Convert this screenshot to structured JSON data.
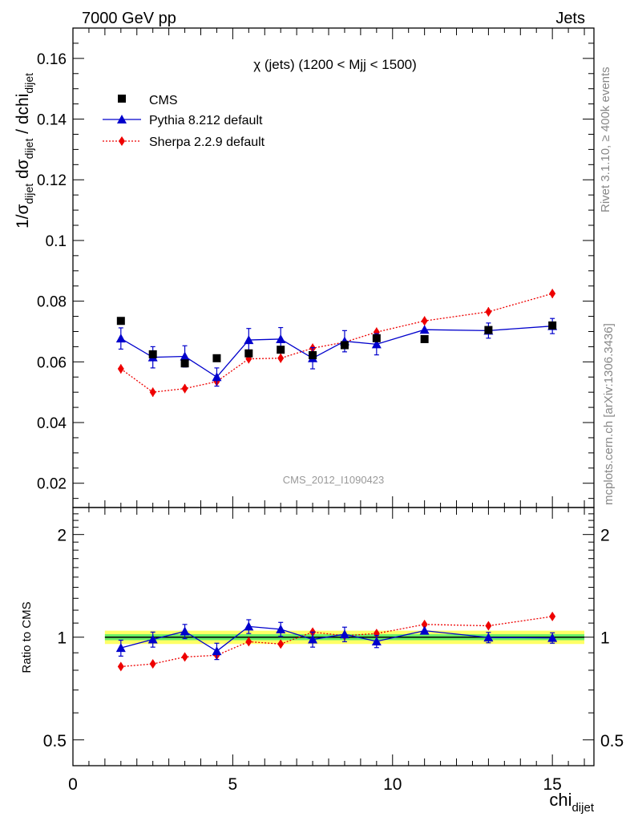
{
  "header": {
    "left": "7000 GeV pp",
    "right": "Jets"
  },
  "side_text": {
    "rivet": "Rivet 3.1.10, ≥ 400k events",
    "mcplots": "mcplots.cern.ch [arXiv:1306.3436]"
  },
  "colors": {
    "data": "#000000",
    "pythia": "#0000cc",
    "sherpa": "#ee0000",
    "band_inner": "#66ee66",
    "band_outer": "#ffff66"
  },
  "chart_data": [
    {
      "type": "scatter",
      "panel": "main",
      "title": "χ (jets) (1200 < Mjj < 1500)",
      "watermark": "CMS_2012_I1090423",
      "ylabel": "1/σdijet dσdijet / dchidijet",
      "xlabel": "chidijet",
      "xlim": [
        0,
        16.3
      ],
      "ylim": [
        0.012,
        0.17
      ],
      "yticks": [
        0.02,
        0.04,
        0.06,
        0.08,
        0.1,
        0.12,
        0.14,
        0.16
      ],
      "ytick_labels": [
        "0.02",
        "0.04",
        "0.06",
        "0.08",
        "0.1",
        "0.12",
        "0.14",
        "0.16"
      ],
      "legend_position": "top-left",
      "series": [
        {
          "name": "CMS",
          "style": "square-markers",
          "x": [
            1.5,
            2.5,
            3.5,
            4.5,
            5.5,
            6.5,
            7.5,
            8.5,
            9.5,
            11,
            13,
            15
          ],
          "y": [
            0.0735,
            0.0625,
            0.0595,
            0.0612,
            0.0628,
            0.064,
            0.0622,
            0.0655,
            0.0678,
            0.0675,
            0.0705,
            0.072
          ]
        },
        {
          "name": "Pythia 8.212 default",
          "style": "triangle-solid-line",
          "x": [
            1.5,
            2.5,
            3.5,
            4.5,
            5.5,
            6.5,
            7.5,
            8.5,
            9.5,
            11,
            13,
            15
          ],
          "y": [
            0.0677,
            0.0615,
            0.0618,
            0.055,
            0.0672,
            0.0675,
            0.0612,
            0.0668,
            0.0658,
            0.0706,
            0.0703,
            0.0718
          ],
          "err": [
            0.0035,
            0.0035,
            0.0035,
            0.003,
            0.0038,
            0.0038,
            0.0035,
            0.0035,
            0.0035,
            0.0,
            0.0025,
            0.0025
          ]
        },
        {
          "name": "Sherpa 2.2.9 default",
          "style": "diamond-dotted-line",
          "x": [
            1.5,
            2.5,
            3.5,
            4.5,
            5.5,
            6.5,
            7.5,
            8.5,
            9.5,
            11,
            13,
            15
          ],
          "y": [
            0.0577,
            0.05,
            0.0512,
            0.0535,
            0.061,
            0.0612,
            0.0645,
            0.0665,
            0.0698,
            0.0735,
            0.0765,
            0.0825
          ],
          "err": [
            0.0015,
            0.0015,
            0.0015,
            0.0015,
            0.0015,
            0.0015,
            0.0015,
            0.0015,
            0.0015,
            0.0015,
            0.0015,
            0.0015
          ]
        }
      ]
    },
    {
      "type": "scatter",
      "panel": "ratio",
      "ylabel": "Ratio to CMS",
      "xlabel": "chidijet",
      "xlim": [
        0,
        16.3
      ],
      "xticks": [
        0,
        5,
        10,
        15
      ],
      "xtick_labels": [
        "0",
        "5",
        "10",
        "15"
      ],
      "ylim": [
        0.42,
        2.4
      ],
      "ylog": true,
      "yticks": [
        0.5,
        1,
        2
      ],
      "ytick_labels": [
        "0.5",
        "1",
        "2"
      ],
      "band": {
        "x": [
          1,
          16
        ],
        "inner": [
          0.98,
          1.02
        ],
        "outer": [
          0.955,
          1.045
        ]
      },
      "series": [
        {
          "name": "Pythia 8.212 default",
          "x": [
            1.5,
            2.5,
            3.5,
            4.5,
            5.5,
            6.5,
            7.5,
            8.5,
            9.5,
            11,
            13,
            15
          ],
          "y": [
            0.93,
            0.985,
            1.04,
            0.91,
            1.075,
            1.055,
            0.985,
            1.02,
            0.972,
            1.045,
            0.998,
            0.995
          ],
          "err": [
            0.05,
            0.05,
            0.05,
            0.05,
            0.05,
            0.05,
            0.05,
            0.05,
            0.04,
            0.0,
            0.035,
            0.035
          ]
        },
        {
          "name": "Sherpa 2.2.9 default",
          "x": [
            1.5,
            2.5,
            3.5,
            4.5,
            5.5,
            6.5,
            7.5,
            8.5,
            9.5,
            11,
            13,
            15
          ],
          "y": [
            0.82,
            0.835,
            0.875,
            0.885,
            0.97,
            0.955,
            1.035,
            1.01,
            1.025,
            1.09,
            1.08,
            1.15
          ],
          "err": [
            0.02,
            0.02,
            0.02,
            0.02,
            0.02,
            0.02,
            0.02,
            0.02,
            0.02,
            0.02,
            0.02,
            0.02
          ]
        }
      ]
    }
  ]
}
